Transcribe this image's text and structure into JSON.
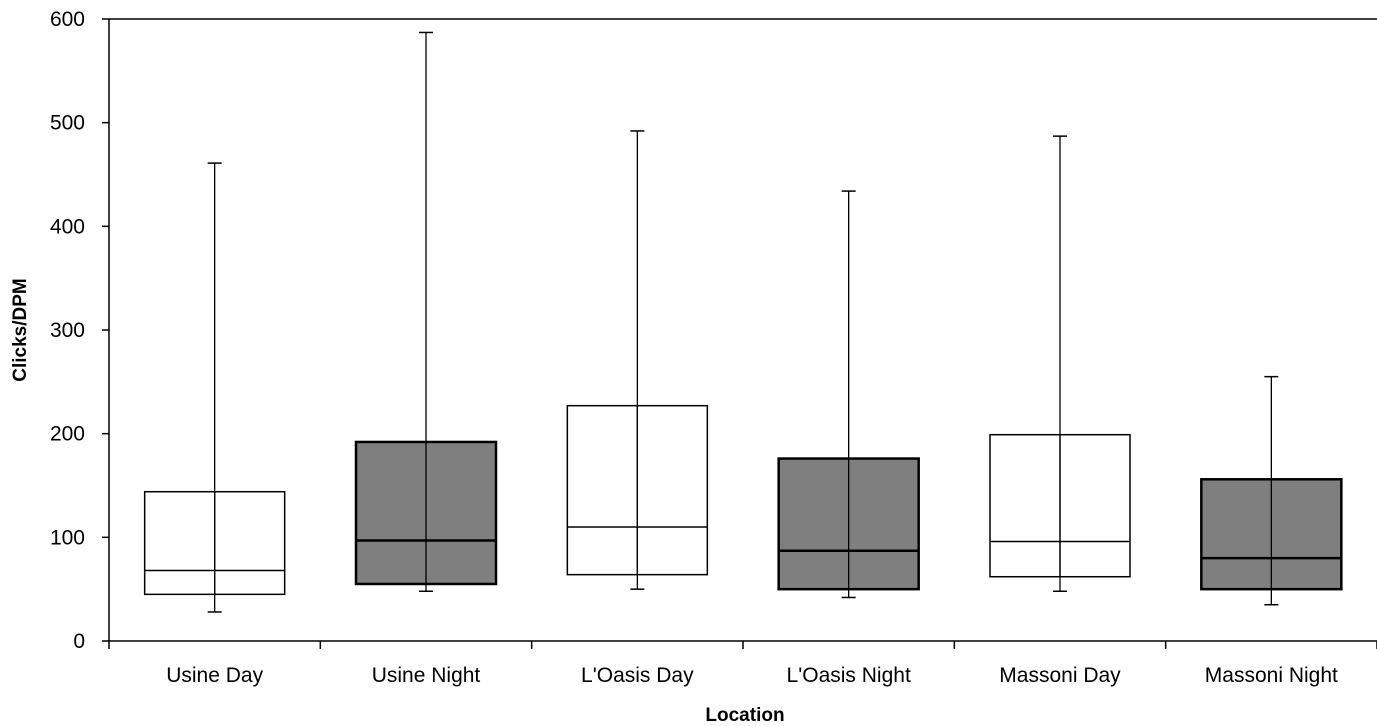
{
  "chart_data": {
    "type": "box",
    "title": "",
    "xlabel": "Location",
    "ylabel": "Clicks/DPM",
    "ylim": [
      0,
      600
    ],
    "yticks": [
      0,
      100,
      200,
      300,
      400,
      500,
      600
    ],
    "grid": false,
    "legend": "none",
    "colors": {
      "day_fill": "#ffffff",
      "night_fill": "#7f7f7f",
      "stroke": "#000000"
    },
    "boxes": [
      {
        "category": "Usine Day",
        "min": 28,
        "q1": 45,
        "median": 68,
        "q3": 144,
        "max": 461,
        "style": "day"
      },
      {
        "category": "Usine Night",
        "min": 48,
        "q1": 55,
        "median": 97,
        "q3": 192,
        "max": 587,
        "style": "night"
      },
      {
        "category": "L'Oasis Day",
        "min": 50,
        "q1": 64,
        "median": 110,
        "q3": 227,
        "max": 492,
        "style": "day"
      },
      {
        "category": "L'Oasis Night",
        "min": 42,
        "q1": 50,
        "median": 87,
        "q3": 176,
        "max": 434,
        "style": "night"
      },
      {
        "category": "Massoni Day",
        "min": 48,
        "q1": 62,
        "median": 96,
        "q3": 199,
        "max": 487,
        "style": "day"
      },
      {
        "category": "Massoni Night",
        "min": 35,
        "q1": 50,
        "median": 80,
        "q3": 156,
        "max": 255,
        "style": "night"
      }
    ]
  }
}
